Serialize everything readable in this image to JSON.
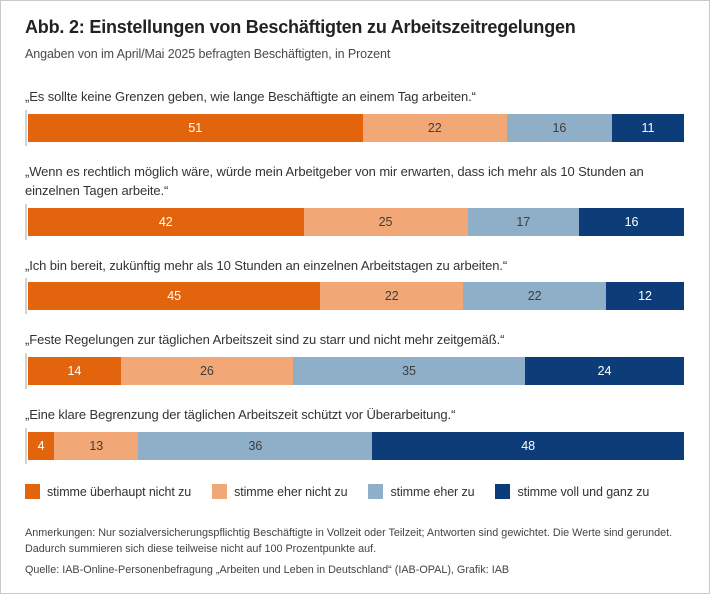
{
  "figure": {
    "title": "Abb. 2: Einstellungen von Beschäftigten zu Arbeitszeitregelungen",
    "subtitle": "Angaben von im April/Mai 2025 befragten Beschäftigten, in Prozent",
    "notes": "Anmerkungen: Nur sozialversicherungspflichtig Beschäftigte in Vollzeit oder Teilzeit; Antworten sind gewichtet. Die Werte sind gerundet. Dadurch summieren sich diese teilweise nicht auf 100 Prozentpunkte auf.",
    "source": "Quelle: IAB-Online-Personenbefragung „Arbeiten und Leben in Deutschland“ (IAB-OPAL), Grafik: IAB"
  },
  "chart_data": {
    "type": "bar",
    "orientation": "horizontal-stacked",
    "unit": "percent",
    "xlim": [
      0,
      100
    ],
    "value_labels": "inside",
    "legend_position": "bottom",
    "categories": [
      "„Es sollte keine Grenzen geben, wie lange Beschäftigte an einem Tag arbeiten.“",
      "„Wenn es rechtlich möglich wäre, würde mein Arbeitgeber von mir erwarten, dass ich mehr als 10 Stunden an einzelnen Tagen arbeite.“",
      "„Ich bin bereit, zukünftig mehr als 10 Stunden an einzelnen Arbeitstagen zu arbeiten.“",
      "„Feste Regelungen zur täglichen Arbeitszeit sind zu starr und nicht mehr zeitgemäß.“",
      "„Eine klare Begrenzung der täglichen Arbeitszeit schützt vor Überarbeitung.“"
    ],
    "series": [
      {
        "name": "stimme überhaupt nicht zu",
        "color": "#e2650e",
        "text_color": "#ffffff",
        "values": [
          51,
          42,
          45,
          14,
          4
        ]
      },
      {
        "name": "stimme eher nicht zu",
        "color": "#f2a876",
        "text_color": "#3d3d3d",
        "values": [
          22,
          25,
          22,
          26,
          13
        ]
      },
      {
        "name": "stimme eher zu",
        "color": "#8faec8",
        "text_color": "#3d3d3d",
        "values": [
          16,
          17,
          22,
          35,
          36
        ]
      },
      {
        "name": "stimme voll und ganz zu",
        "color": "#0d3d78",
        "text_color": "#ffffff",
        "values": [
          11,
          16,
          12,
          24,
          48
        ]
      }
    ]
  }
}
